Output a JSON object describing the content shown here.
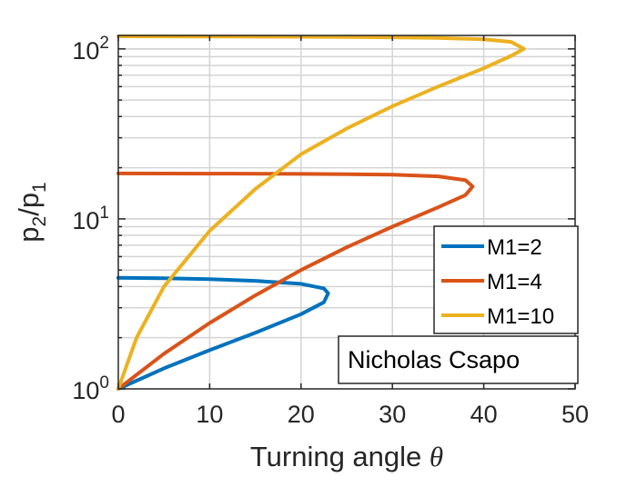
{
  "chart_data": {
    "type": "line",
    "xlabel": "Turning angle",
    "xlabel_symbol": "θ",
    "ylabel": "p2/p1",
    "xlim": [
      0,
      50
    ],
    "ylim": [
      1,
      120
    ],
    "yscale": "log",
    "grid": "on",
    "x_ticks": [
      "0",
      "10",
      "20",
      "30",
      "40",
      "50"
    ],
    "y_ticks": [
      {
        "base": "10",
        "exp": "0"
      },
      {
        "base": "10",
        "exp": "1"
      },
      {
        "base": "10",
        "exp": "2"
      }
    ],
    "legend_position": "right",
    "annotation": "Nicholas Csapo",
    "series": [
      {
        "name": "M1=2",
        "color": "#0072BD",
        "x": [
          0,
          5,
          10,
          15,
          20,
          22.5,
          22.97,
          22.5,
          20,
          15,
          10,
          5,
          0
        ],
        "y": [
          1.0,
          1.32,
          1.69,
          2.14,
          2.75,
          3.23,
          3.65,
          3.9,
          4.15,
          4.32,
          4.42,
          4.47,
          4.5
        ]
      },
      {
        "name": "M1=4",
        "color": "#D95319",
        "x": [
          0,
          5,
          10,
          15,
          20,
          25,
          30,
          35,
          38,
          38.78,
          38,
          35,
          30,
          20,
          10,
          0
        ],
        "y": [
          1.0,
          1.61,
          2.44,
          3.55,
          5.0,
          6.8,
          9.0,
          11.7,
          13.8,
          15.5,
          16.9,
          17.8,
          18.2,
          18.4,
          18.45,
          18.5
        ]
      },
      {
        "name": "M1=10",
        "color": "#EDB120",
        "x": [
          0,
          2,
          5,
          10,
          15,
          20,
          25,
          30,
          35,
          40,
          43,
          44.4,
          43,
          40,
          35,
          30,
          20,
          10,
          0
        ],
        "y": [
          1.0,
          2.0,
          4.0,
          8.5,
          15.0,
          24.0,
          34.0,
          46.0,
          60.0,
          77.0,
          91.0,
          100.0,
          110.0,
          114.0,
          116.0,
          117.0,
          117.8,
          118.2,
          118.5
        ]
      }
    ]
  }
}
